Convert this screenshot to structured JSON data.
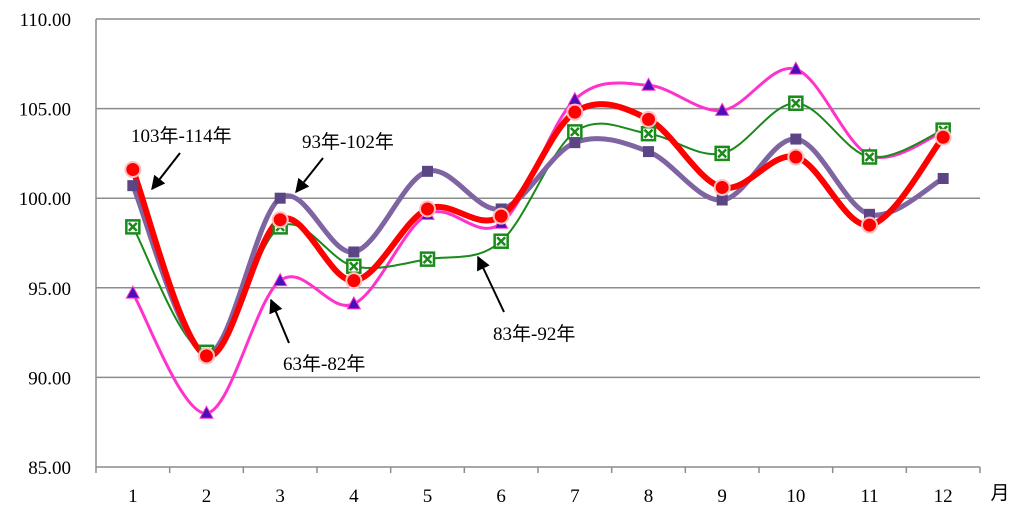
{
  "chart_data": {
    "type": "line",
    "title": "",
    "xlabel": "月",
    "ylabel": "",
    "ylim": [
      85,
      110
    ],
    "y_ticks": [
      "85.00",
      "90.00",
      "95.00",
      "100.00",
      "105.00",
      "110.00"
    ],
    "categories": [
      "1",
      "2",
      "3",
      "4",
      "5",
      "6",
      "7",
      "8",
      "9",
      "10",
      "11",
      "12"
    ],
    "grid": "horizontal",
    "series": [
      {
        "name": "63年-82年",
        "color": "#ff33cc",
        "marker": "triangle",
        "marker_color": "#4b0fb8",
        "values": [
          94.7,
          88.0,
          95.4,
          94.1,
          99.1,
          98.6,
          105.5,
          106.3,
          104.9,
          107.2,
          102.4,
          103.7
        ]
      },
      {
        "name": "83年-92年",
        "color": "#1a8a1a",
        "marker": "square-x",
        "marker_color": "#1a8a1a",
        "values": [
          98.4,
          91.4,
          98.4,
          96.2,
          96.6,
          97.6,
          103.7,
          103.6,
          102.5,
          105.3,
          102.3,
          103.8
        ]
      },
      {
        "name": "93年-102年",
        "color": "#7f64a2",
        "marker": "square",
        "marker_color": "#5b4585",
        "values": [
          100.7,
          91.3,
          100.0,
          97.0,
          101.5,
          99.4,
          103.1,
          102.6,
          99.9,
          103.3,
          99.1,
          101.1
        ]
      },
      {
        "name": "103年-114年",
        "color": "#ff0000",
        "marker": "circle",
        "marker_color": "#ff0000",
        "values": [
          101.6,
          91.2,
          98.8,
          95.4,
          99.4,
          99.0,
          104.8,
          104.4,
          100.6,
          102.3,
          98.5,
          103.4
        ]
      }
    ],
    "annotations": [
      {
        "text": "103年-114年",
        "series": "103年-114年"
      },
      {
        "text": "93年-102年",
        "series": "93年-102年"
      },
      {
        "text": "63年-82年",
        "series": "63年-82年"
      },
      {
        "text": "83年-92年",
        "series": "83年-92年"
      }
    ]
  }
}
